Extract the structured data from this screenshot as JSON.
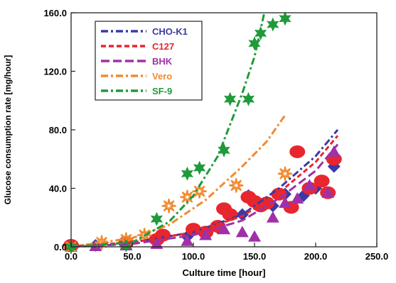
{
  "chart_data": {
    "type": "scatter",
    "xlabel": "Culture time [hour]",
    "ylabel": "Glucose consumption rate [mg/hour]",
    "xlim": [
      0,
      250
    ],
    "ylim": [
      0,
      160
    ],
    "x_ticks": [
      "0.0",
      "50.0",
      "100.0",
      "150.0",
      "200.0",
      "250.0"
    ],
    "y_ticks": [
      "0.0",
      "40.0",
      "80.0",
      "120.0",
      "160.0"
    ],
    "grid": false,
    "legend_position": "top-left",
    "series": [
      {
        "name": "CHO-K1",
        "color": "#3a3aa8",
        "marker": "diamond",
        "dash": "10,4,3,4",
        "points": [
          [
            0,
            0.5
          ],
          [
            20,
            1
          ],
          [
            45,
            2
          ],
          [
            70,
            4
          ],
          [
            95,
            7
          ],
          [
            120,
            13
          ],
          [
            140,
            22
          ],
          [
            145,
            35
          ],
          [
            165,
            28
          ],
          [
            175,
            36
          ],
          [
            190,
            35
          ],
          [
            200,
            40
          ],
          [
            215,
            55
          ]
        ],
        "fit": [
          [
            0,
            0.5
          ],
          [
            50,
            3
          ],
          [
            100,
            10
          ],
          [
            140,
            22
          ],
          [
            170,
            40
          ],
          [
            200,
            62
          ],
          [
            218,
            80
          ]
        ]
      },
      {
        "name": "C127",
        "color": "#e8262e",
        "marker": "circle",
        "dash": "7,4",
        "points": [
          [
            0,
            1
          ],
          [
            45,
            3
          ],
          [
            70,
            5
          ],
          [
            75,
            8
          ],
          [
            100,
            12
          ],
          [
            110,
            10
          ],
          [
            120,
            14
          ],
          [
            125,
            26
          ],
          [
            130,
            22
          ],
          [
            145,
            34
          ],
          [
            150,
            31
          ],
          [
            155,
            28
          ],
          [
            160,
            30
          ],
          [
            170,
            36
          ],
          [
            180,
            27
          ],
          [
            185,
            65
          ],
          [
            195,
            40
          ],
          [
            205,
            45
          ],
          [
            210,
            37
          ],
          [
            215,
            60
          ]
        ],
        "fit": [
          [
            0,
            0.5
          ],
          [
            50,
            3
          ],
          [
            100,
            10
          ],
          [
            140,
            21
          ],
          [
            170,
            37
          ],
          [
            200,
            58
          ],
          [
            218,
            76
          ]
        ]
      },
      {
        "name": "BHK",
        "color": "#a030a8",
        "marker": "triangle",
        "dash": "12,5",
        "points": [
          [
            0,
            0
          ],
          [
            20,
            0.5
          ],
          [
            45,
            1
          ],
          [
            70,
            2
          ],
          [
            95,
            4
          ],
          [
            110,
            8
          ],
          [
            125,
            12
          ],
          [
            140,
            10
          ],
          [
            150,
            7
          ],
          [
            165,
            20
          ],
          [
            175,
            30
          ],
          [
            185,
            33
          ],
          [
            195,
            42
          ],
          [
            210,
            37
          ],
          [
            215,
            65
          ]
        ],
        "fit": [
          [
            0,
            0
          ],
          [
            50,
            2
          ],
          [
            100,
            8
          ],
          [
            140,
            18
          ],
          [
            170,
            33
          ],
          [
            200,
            52
          ],
          [
            218,
            70
          ]
        ]
      },
      {
        "name": "Vero",
        "color": "#f08a30",
        "marker": "asterisk",
        "dash": "10,4,3,4",
        "points": [
          [
            0,
            0
          ],
          [
            25,
            3
          ],
          [
            45,
            5
          ],
          [
            60,
            8
          ],
          [
            80,
            28
          ],
          [
            95,
            34
          ],
          [
            105,
            38
          ],
          [
            135,
            42
          ],
          [
            175,
            50
          ]
        ],
        "fit": [
          [
            0,
            0
          ],
          [
            50,
            6
          ],
          [
            80,
            15
          ],
          [
            110,
            32
          ],
          [
            140,
            55
          ],
          [
            160,
            72
          ],
          [
            175,
            90
          ]
        ]
      },
      {
        "name": "SF-9",
        "color": "#1f9a3a",
        "marker": "star",
        "dash": "10,4,3,4",
        "points": [
          [
            0,
            0
          ],
          [
            45,
            1
          ],
          [
            70,
            19
          ],
          [
            95,
            50
          ],
          [
            105,
            54
          ],
          [
            125,
            66
          ],
          [
            130,
            101
          ],
          [
            145,
            101
          ],
          [
            150,
            139
          ],
          [
            155,
            146
          ],
          [
            165,
            152
          ],
          [
            175,
            156
          ]
        ],
        "fit": [
          [
            0,
            0
          ],
          [
            50,
            3
          ],
          [
            80,
            17
          ],
          [
            100,
            35
          ],
          [
            120,
            62
          ],
          [
            140,
            105
          ],
          [
            150,
            130
          ],
          [
            158,
            160
          ]
        ]
      }
    ]
  }
}
